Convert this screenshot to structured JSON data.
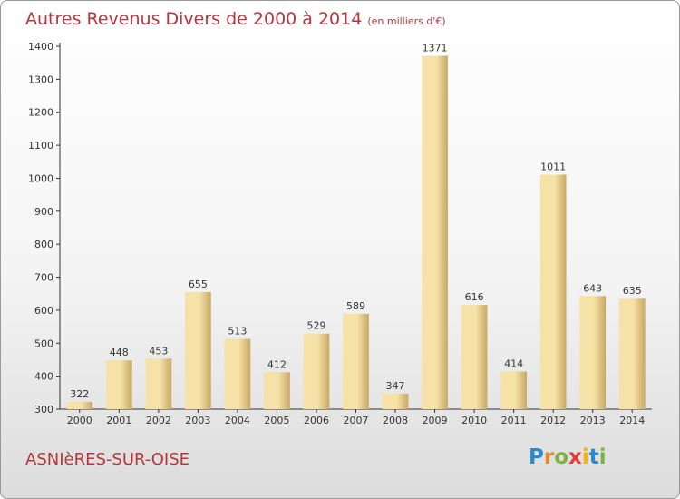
{
  "header": {
    "title": "Autres Revenus Divers de 2000 à 2014",
    "unit": "(en milliers d'€)"
  },
  "footer": {
    "city": "ASNIèRES-SUR-OISE",
    "logo_letters": [
      "P",
      "r",
      "o",
      "x",
      "i",
      "t",
      "i"
    ],
    "logo_colors": [
      "#2a8bc9",
      "#e6892a",
      "#7cb342",
      "#e53935",
      "#f2b705",
      "#2a8bc9",
      "#7cb342"
    ]
  },
  "colors": {
    "bar_light": "#f6e2a6",
    "bar_dark": "#c8a865",
    "title": "#b5373d"
  },
  "chart_data": {
    "type": "bar",
    "categories": [
      "2000",
      "2001",
      "2002",
      "2003",
      "2004",
      "2005",
      "2006",
      "2007",
      "2008",
      "2009",
      "2010",
      "2011",
      "2012",
      "2013",
      "2014"
    ],
    "values": [
      322,
      448,
      453,
      655,
      513,
      412,
      529,
      589,
      347,
      1371,
      616,
      414,
      1011,
      643,
      635
    ],
    "ylim": [
      300,
      1400
    ],
    "yticks": [
      300,
      400,
      500,
      600,
      700,
      800,
      900,
      1000,
      1100,
      1200,
      1300,
      1400
    ],
    "grid": false,
    "xlabel": "",
    "ylabel": ""
  }
}
